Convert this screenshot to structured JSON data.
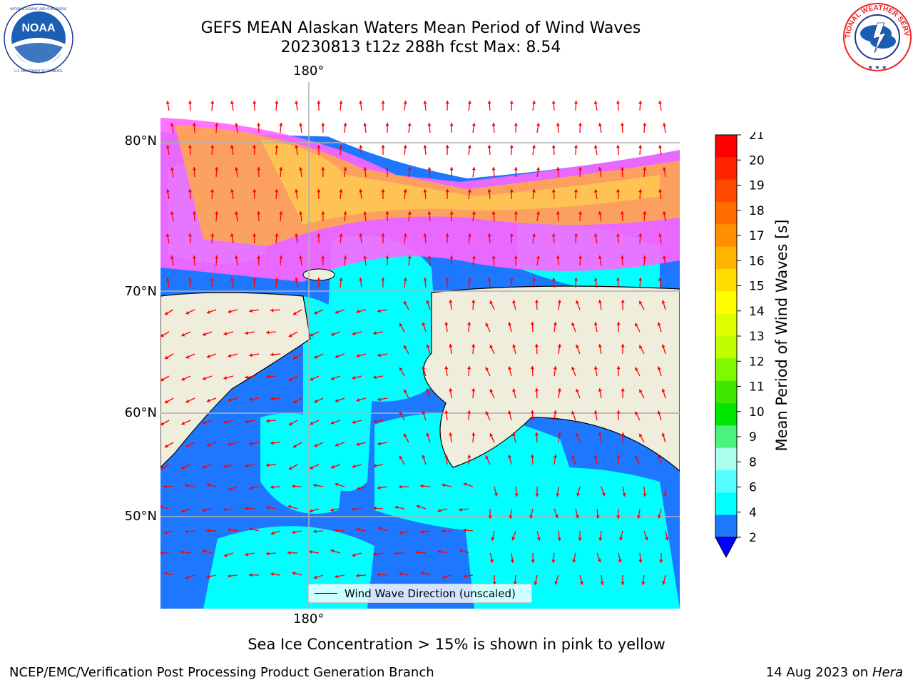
{
  "title_line1": "GEFS MEAN Alaskan Waters Mean Period of Wind Waves",
  "title_line2": "20230813 t12z 288h fcst   Max: 8.54",
  "map": {
    "lat_labels": [
      "80°N",
      "70°N",
      "60°N",
      "50°N"
    ],
    "lon_label_top": "180°",
    "lon_label_bottom": "180°",
    "legend_label": "Wind Wave Direction (unscaled)",
    "colors": {
      "land": "#efeddc",
      "ice_pink": "#ff66ff",
      "ice_orange": "#ffaa44",
      "ice_yellow": "#ffd24d",
      "wave_blue": "#1e78ff",
      "wave_cyan": "#00ffff",
      "arrow": "#ff0000",
      "grid": "#b0b0b0"
    }
  },
  "colorbar": {
    "label": "Mean Period of Wind Waves [s]",
    "ticks": [
      "21",
      "20",
      "19",
      "18",
      "17",
      "16",
      "15",
      "14",
      "13",
      "12",
      "11",
      "10",
      "9",
      "8",
      "6",
      "4",
      "2"
    ],
    "colors_top_to_bottom": [
      "#ff0000",
      "#ff2400",
      "#ff4800",
      "#ff6c00",
      "#ff9000",
      "#ffb400",
      "#ffde00",
      "#ffff00",
      "#dfff00",
      "#bfff00",
      "#7ff800",
      "#3fe600",
      "#00e600",
      "#4cf27f",
      "#aaffee",
      "#55ffff",
      "#00ffff",
      "#1e78ff"
    ],
    "under_color": "#0000ff"
  },
  "subtitle": "Sea Ice Concentration > 15% is shown in pink to yellow",
  "footer_left": "NCEP/EMC/Verification Post Processing Product Generation Branch",
  "footer_right_date": "14 Aug 2023 on",
  "footer_right_machine": "Hera",
  "logos": {
    "noaa": {
      "icon": "noaa-logo",
      "text": "NOAA",
      "ring_text": "NATIONAL OCEANIC AND ATMOSPHERIC ADMINISTRATION · U.S. DEPARTMENT OF COMMERCE"
    },
    "nws": {
      "icon": "nws-logo",
      "ring_text": "NATIONAL WEATHER SERVICE"
    }
  }
}
